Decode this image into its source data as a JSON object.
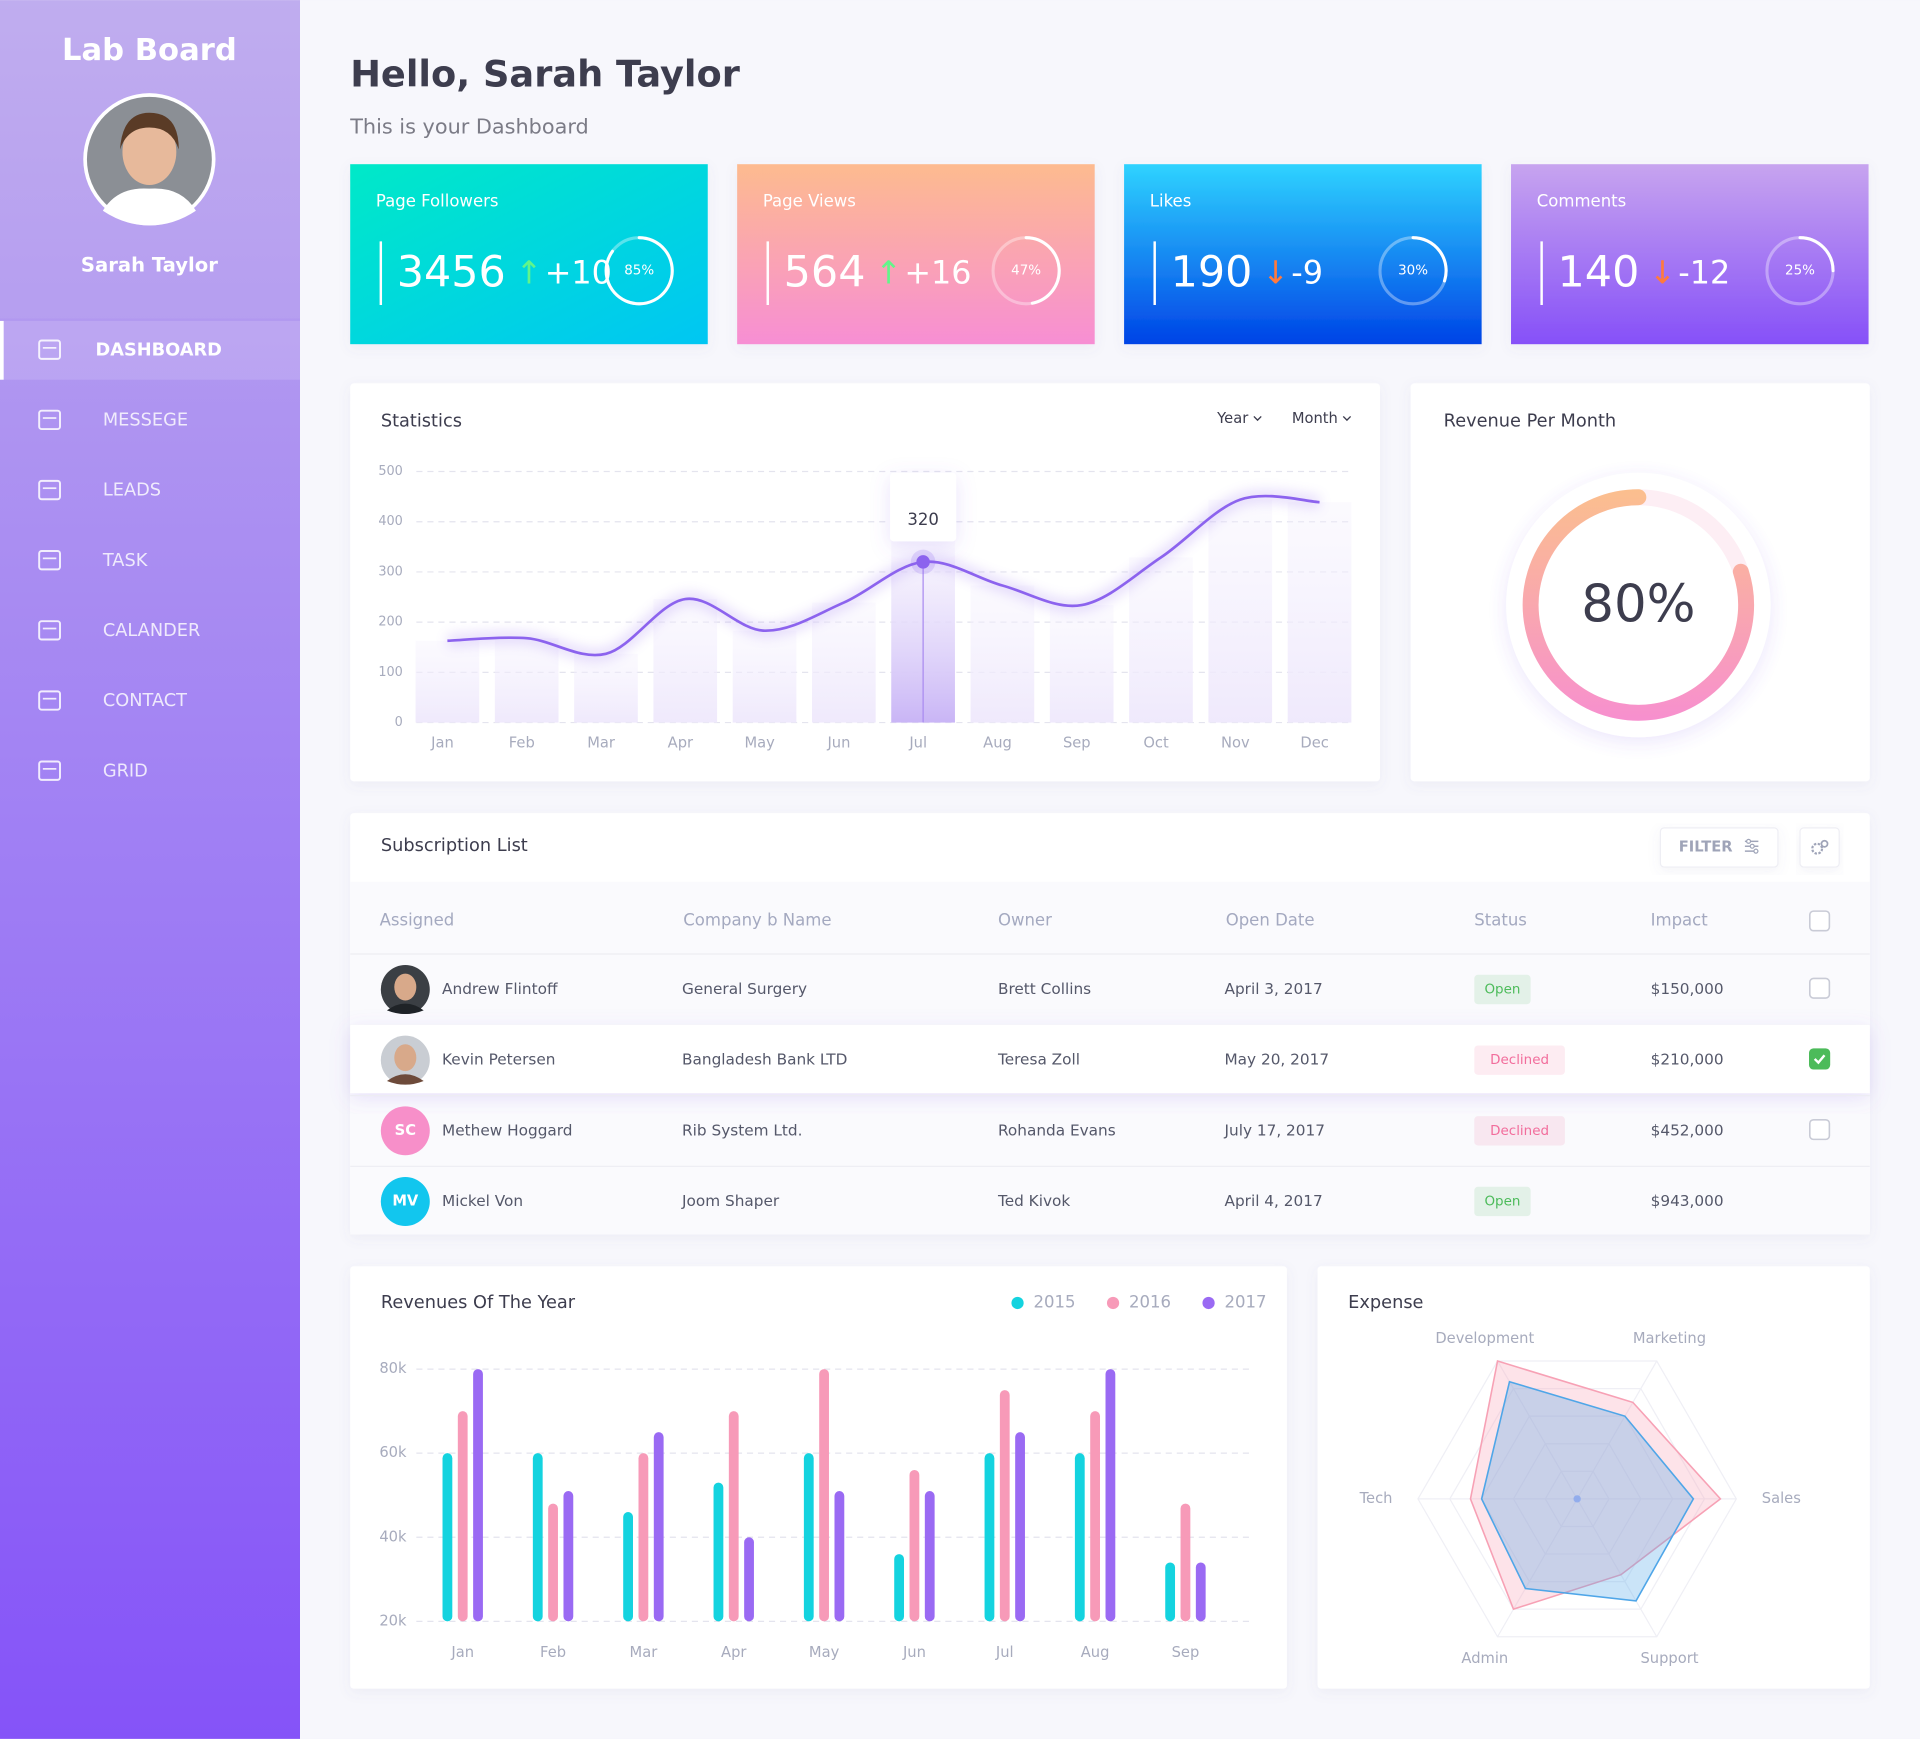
{
  "sidebar": {
    "brand": "Lab Board",
    "user": "Sarah Taylor",
    "menu": [
      "DASHBOARD",
      "MESSEGE",
      "LEADS",
      "TASK",
      "CALANDER",
      "CONTACT",
      "GRID"
    ],
    "active": 0
  },
  "header": {
    "title": "Hello, Sarah Taylor",
    "subtitle": "This is your Dashboard"
  },
  "cards": [
    {
      "label": "Page Followers",
      "value": "3456",
      "change": "+10",
      "trend": "up",
      "percent": {
        "value": 85,
        "label": "85%"
      }
    },
    {
      "label": "Page Views",
      "value": "564",
      "change": "+16",
      "trend": "up",
      "percent": {
        "value": 47,
        "label": "47%"
      }
    },
    {
      "label": "Likes",
      "value": "190",
      "change": "-9",
      "trend": "down",
      "percent": {
        "value": 30,
        "label": "30%"
      }
    },
    {
      "label": "Comments",
      "value": "140",
      "change": "-12",
      "trend": "down",
      "percent": {
        "value": 25,
        "label": "25%"
      }
    }
  ],
  "chart_data": [
    {
      "type": "line",
      "title": "Statistics",
      "controls": [
        "Year",
        "Month"
      ],
      "categories": [
        "Jan",
        "Feb",
        "Mar",
        "Apr",
        "May",
        "Jun",
        "Jul",
        "Aug",
        "Sep",
        "Oct",
        "Nov",
        "Dec"
      ],
      "values": [
        163,
        168,
        137,
        246,
        183,
        239,
        320,
        273,
        234,
        329,
        444,
        439
      ],
      "color": "#8c63ee",
      "ylim": [
        0,
        500
      ],
      "yticks": [
        0,
        100,
        200,
        300,
        400,
        500
      ],
      "grid": true,
      "highlight": 6
    },
    {
      "type": "gauge",
      "title": "Revenue Per Month",
      "values": [
        80
      ],
      "value_labels": [
        "80%"
      ],
      "ylim": [
        0,
        100
      ]
    },
    {
      "type": "bar",
      "title": "Revenues Of The Year",
      "categories": [
        "Jan",
        "Feb",
        "Mar",
        "Apr",
        "May",
        "Jun",
        "Jul",
        "Aug",
        "Sep"
      ],
      "series": [
        {
          "name": "2015",
          "color": "#14d3df",
          "values": [
            60000,
            60000,
            46000,
            53000,
            60000,
            36000,
            60000,
            60000,
            34000
          ]
        },
        {
          "name": "2016",
          "color": "#f79ab8",
          "values": [
            70000,
            48000,
            60000,
            70000,
            80000,
            56000,
            75000,
            70000,
            48000
          ]
        },
        {
          "name": "2017",
          "color": "#9a6af3",
          "values": [
            80000,
            51000,
            65000,
            40000,
            51000,
            51000,
            65000,
            80000,
            34000
          ]
        }
      ],
      "ylim": [
        20000,
        80000
      ],
      "yticks": [
        {
          "value": 20000,
          "label": "20k"
        },
        {
          "value": 40000,
          "label": "40k"
        },
        {
          "value": 60000,
          "label": "60k"
        },
        {
          "value": 80000,
          "label": "80k"
        }
      ],
      "grid": true,
      "legend": "top-right"
    },
    {
      "type": "radar",
      "title": "Expense",
      "categories": [
        "Sales",
        "Support",
        "Admin",
        "Tech",
        "Development",
        "Marketing"
      ],
      "series": [
        {
          "color": "#f7a1b5",
          "values": [
            90,
            55,
            80,
            67,
            100,
            70
          ]
        },
        {
          "color": "#4fa6e8",
          "values": [
            73,
            74,
            65,
            60,
            85,
            60
          ]
        }
      ],
      "rlim": [
        0,
        100
      ]
    }
  ],
  "subscriptions": {
    "title": "Subscription List",
    "filter": "FILTER",
    "columns": [
      "Assigned",
      "Company b Name",
      "Owner",
      "Open Date",
      "Status",
      "Impact"
    ],
    "hovered": 1,
    "rows": [
      {
        "assigned": "Andrew Flintoff",
        "company": "General Surgery",
        "owner": "Brett Collins",
        "date": "April 3, 2017",
        "status": "Open",
        "status_color": "#4cbb5a",
        "impact": "$150,000",
        "checked": false
      },
      {
        "assigned": "Kevin Petersen",
        "company": "Bangladesh Bank LTD",
        "owner": "Teresa Zoll",
        "date": "May 20, 2017",
        "status": "Declined",
        "status_color": "#f26d9c",
        "impact": "$210,000",
        "checked": true
      },
      {
        "initials": "SC",
        "avatar_color": "#f78fc9",
        "assigned": "Methew Hoggard",
        "company": "Rib System Ltd.",
        "owner": "Rohanda Evans",
        "date": "July 17, 2017",
        "status": "Declined",
        "status_color": "#f26d9c",
        "impact": "$452,000",
        "checked": false
      },
      {
        "initials": "MV",
        "avatar_color": "#12c6ee",
        "assigned": "Mickel Von",
        "company": "Joom Shaper",
        "owner": "Ted Kivok",
        "date": "April 4, 2017",
        "status": "Open",
        "status_color": "#4cbb5a",
        "impact": "$943,000"
      }
    ]
  }
}
